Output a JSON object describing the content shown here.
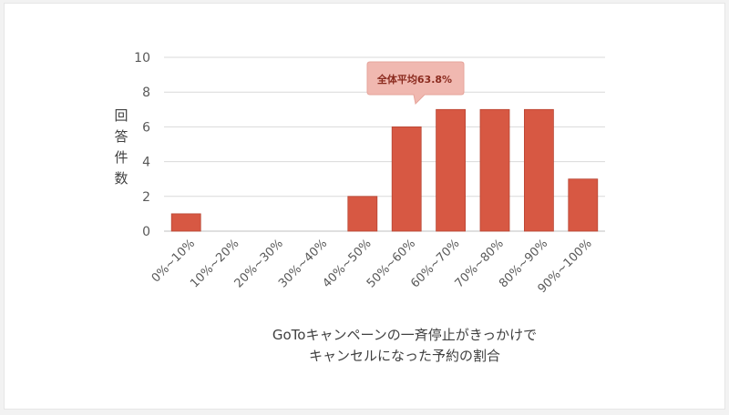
{
  "chart_data": {
    "type": "bar",
    "categories": [
      "0%~10%",
      "10%~20%",
      "20%~30%",
      "30%~40%",
      "40%~50%",
      "50%~60%",
      "60%~70%",
      "70%~80%",
      "80%~90%",
      "90%~100%"
    ],
    "values": [
      1,
      0,
      0,
      0,
      2,
      6,
      7,
      7,
      7,
      3
    ],
    "ylabel": "回答件数",
    "xlabel_lines": [
      "GoToキャンペーンの一斉停止がきっかけで",
      "キャンセルになった予約の割合"
    ],
    "ylim": [
      0,
      10
    ],
    "yticks": [
      0,
      2,
      4,
      6,
      8,
      10
    ],
    "grid": true,
    "annotation": "全体平均63.8%",
    "bar_color": "#d75843",
    "callout_color": "#f0b8b0"
  }
}
